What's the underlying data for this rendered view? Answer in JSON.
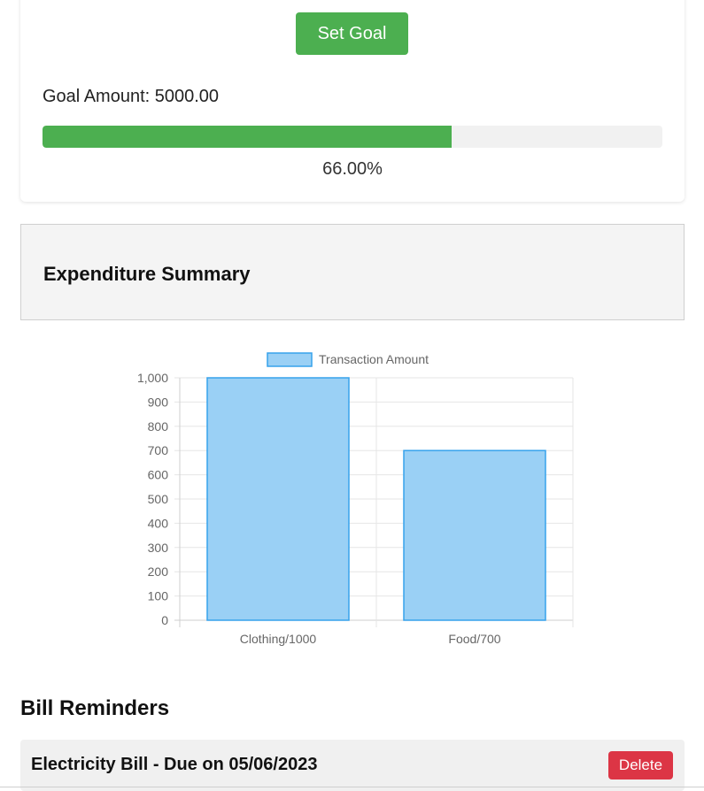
{
  "goal": {
    "set_goal_label": "Set Goal",
    "amount_text": "Goal Amount: 5000.00",
    "progress_fraction": 0.66,
    "progress_text": "66.00%",
    "fill_color": "#4caf50"
  },
  "summary": {
    "title": "Expenditure Summary"
  },
  "chart_data": {
    "type": "bar",
    "categories": [
      "Clothing/1000",
      "Food/700"
    ],
    "series": [
      {
        "name": "Transaction Amount",
        "values": [
          1000,
          700
        ]
      }
    ],
    "ylim": [
      0,
      1000
    ],
    "yticks": [
      0,
      100,
      200,
      300,
      400,
      500,
      600,
      700,
      800,
      900,
      1000
    ],
    "ytick_labels": [
      "0",
      "100",
      "200",
      "300",
      "400",
      "500",
      "600",
      "700",
      "800",
      "900",
      "1,000"
    ],
    "legend": "top",
    "grid": true,
    "bar_fill": "#9ad0f5",
    "bar_stroke": "#36a2eb"
  },
  "bills": {
    "title": "Bill Reminders",
    "items": [
      {
        "text": "Electricity Bill - Due on 05/06/2023",
        "delete_label": "Delete"
      }
    ]
  }
}
